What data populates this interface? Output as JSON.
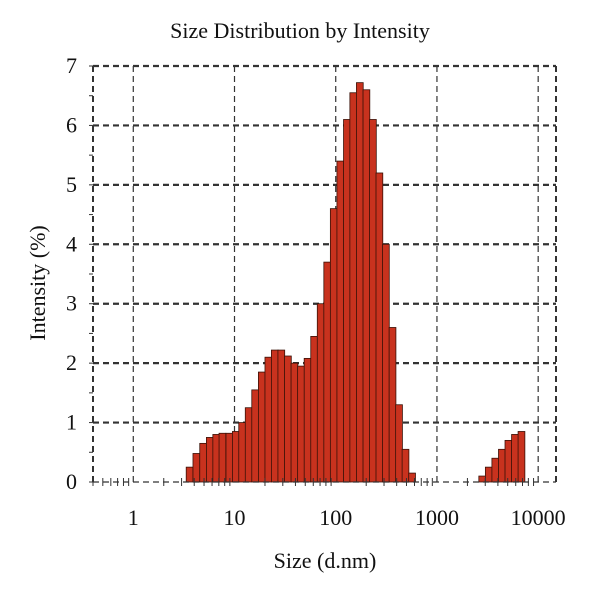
{
  "chart_data": {
    "type": "bar",
    "title": "Size Distribution by Intensity",
    "xlabel": "Size (d.nm)",
    "ylabel": "Intensity (%)",
    "x_scale": "log",
    "xlim": [
      0.4,
      15000
    ],
    "ylim": [
      0,
      7
    ],
    "x_ticks": [
      1,
      10,
      100,
      1000,
      10000
    ],
    "x_tick_labels": [
      "1",
      "10",
      "100",
      "1000",
      "10000"
    ],
    "y_ticks": [
      0,
      1,
      2,
      3,
      4,
      5,
      6,
      7
    ],
    "y_tick_labels": [
      "0",
      "1",
      "2",
      "3",
      "4",
      "5",
      "6",
      "7"
    ],
    "grid": true,
    "colors": {
      "bar_fill": "#c8321e",
      "bar_edge": "#3a1208",
      "grid": "#333333"
    },
    "series": [
      {
        "sizes": [
          3.6,
          4.2,
          4.9,
          5.7,
          6.6,
          7.6,
          8.9,
          10.3,
          11.9,
          13.8,
          16.0,
          18.6,
          21.6,
          25.0,
          29.0,
          33.7,
          39.1,
          45.4,
          52.7,
          61.2,
          71.0,
          82.4,
          95.6,
          111,
          129,
          149,
          173,
          201,
          233,
          270,
          313,
          364,
          422,
          489,
          568,
          659,
          765,
          888,
          2800,
          3250,
          3770,
          4380,
          5080,
          5900,
          6840
        ],
        "values": [
          0.25,
          0.48,
          0.65,
          0.75,
          0.8,
          0.82,
          0.82,
          0.85,
          1.0,
          1.25,
          1.55,
          1.85,
          2.1,
          2.22,
          2.22,
          2.12,
          2.0,
          1.95,
          2.08,
          2.45,
          3.0,
          3.7,
          4.6,
          5.4,
          6.1,
          6.55,
          6.72,
          6.6,
          6.1,
          5.2,
          4.0,
          2.6,
          1.3,
          0.55,
          0.15,
          0,
          0,
          0,
          0.1,
          0.25,
          0.4,
          0.55,
          0.7,
          0.8,
          0.85
        ]
      }
    ]
  }
}
